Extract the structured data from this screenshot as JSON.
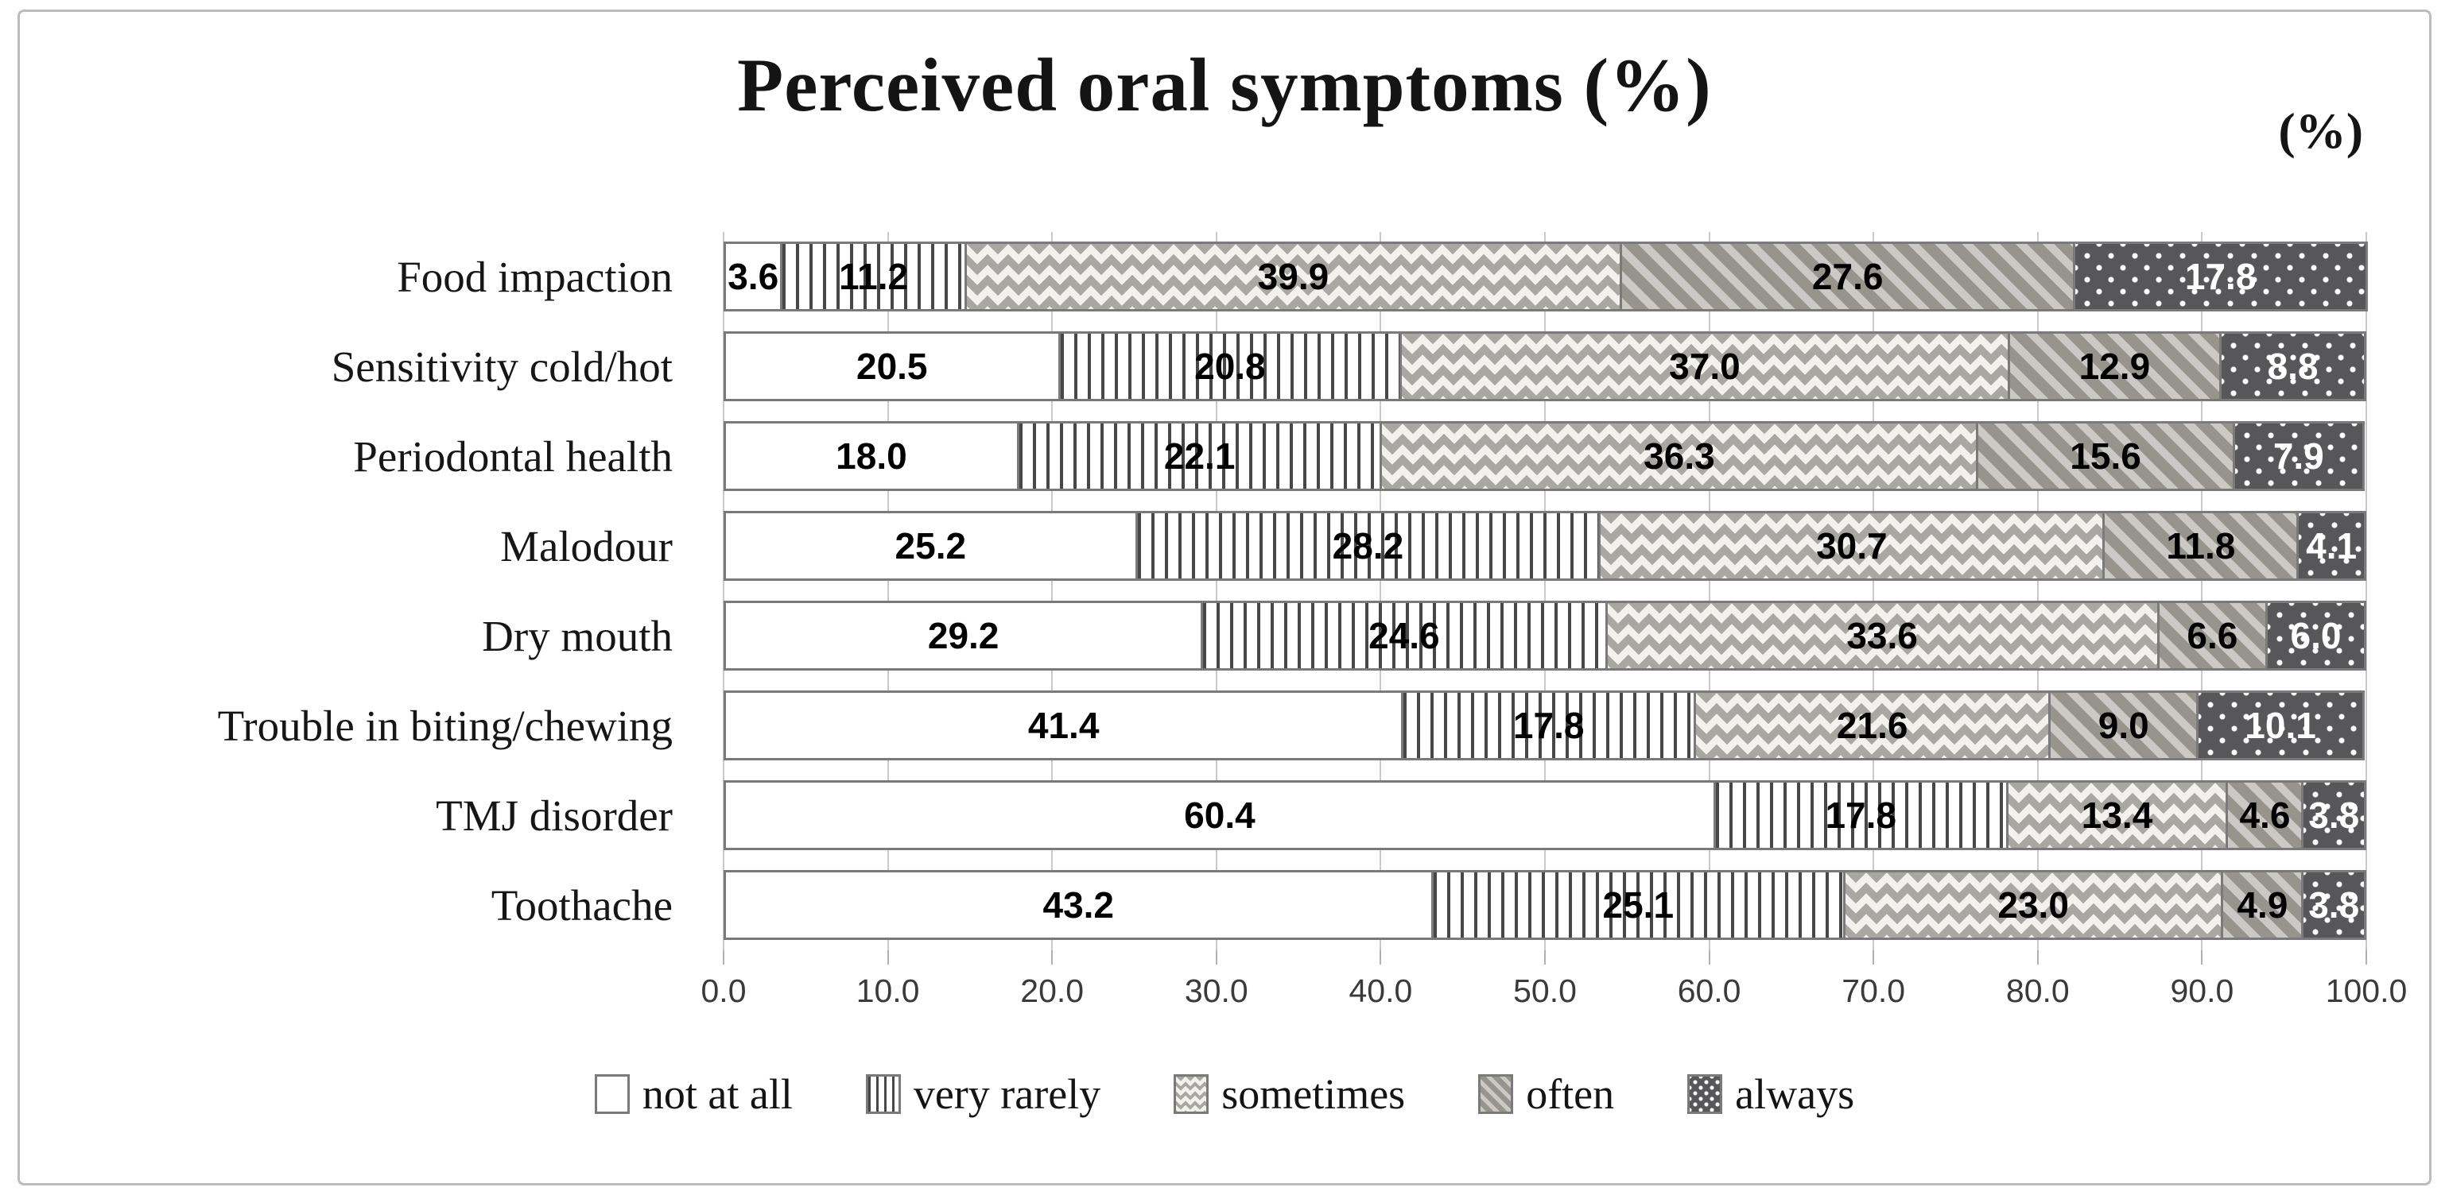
{
  "chart_data": {
    "type": "bar",
    "variant": "horizontal_stacked",
    "title": "Perceived oral symptoms (%)",
    "unit_label": "(%)",
    "categories": [
      "Food impaction",
      "Sensitivity cold/hot",
      "Periodontal health",
      "Malodour",
      "Dry mouth",
      "Trouble in biting/chewing",
      "TMJ disorder",
      "Toothache"
    ],
    "series": [
      {
        "name": "not at all",
        "pattern": "solid-white",
        "label_color": "#000000",
        "values": [
          3.6,
          20.5,
          18.0,
          25.2,
          29.2,
          41.4,
          60.4,
          43.2
        ]
      },
      {
        "name": "very rarely",
        "pattern": "vertical-lines",
        "label_color": "#000000",
        "values": [
          11.2,
          20.8,
          22.1,
          28.2,
          24.6,
          17.8,
          17.8,
          25.1
        ]
      },
      {
        "name": "sometimes",
        "pattern": "zigzag-wave",
        "label_color": "#000000",
        "values": [
          39.9,
          37.0,
          36.3,
          30.7,
          33.6,
          21.6,
          13.4,
          23.0
        ]
      },
      {
        "name": "often",
        "pattern": "diagonal-stripes",
        "label_color": "#000000",
        "values": [
          27.6,
          12.9,
          15.6,
          11.8,
          6.6,
          9.0,
          4.6,
          4.9
        ]
      },
      {
        "name": "always",
        "pattern": "dark-white-dots",
        "label_color": "#ffffff",
        "values": [
          17.8,
          8.8,
          7.9,
          4.1,
          6.0,
          10.1,
          3.8,
          3.8
        ]
      }
    ],
    "xlim": [
      0,
      100
    ],
    "x_ticks": [
      "0.0",
      "10.0",
      "20.0",
      "30.0",
      "40.0",
      "50.0",
      "60.0",
      "70.0",
      "80.0",
      "90.0",
      "100.0"
    ],
    "grid": "vertical",
    "legend_position": "bottom",
    "legend": [
      "not at all",
      "very rarely",
      "sometimes",
      "often",
      "always"
    ],
    "colors": {
      "segment_border": "#7a7a7a",
      "gridline": "#c9c9c9",
      "dark_fill": "#575659",
      "stripe_gray": "#97948e",
      "zigzag_bg": "#f2f1ee",
      "frame_border": "#bcbcbc"
    }
  }
}
